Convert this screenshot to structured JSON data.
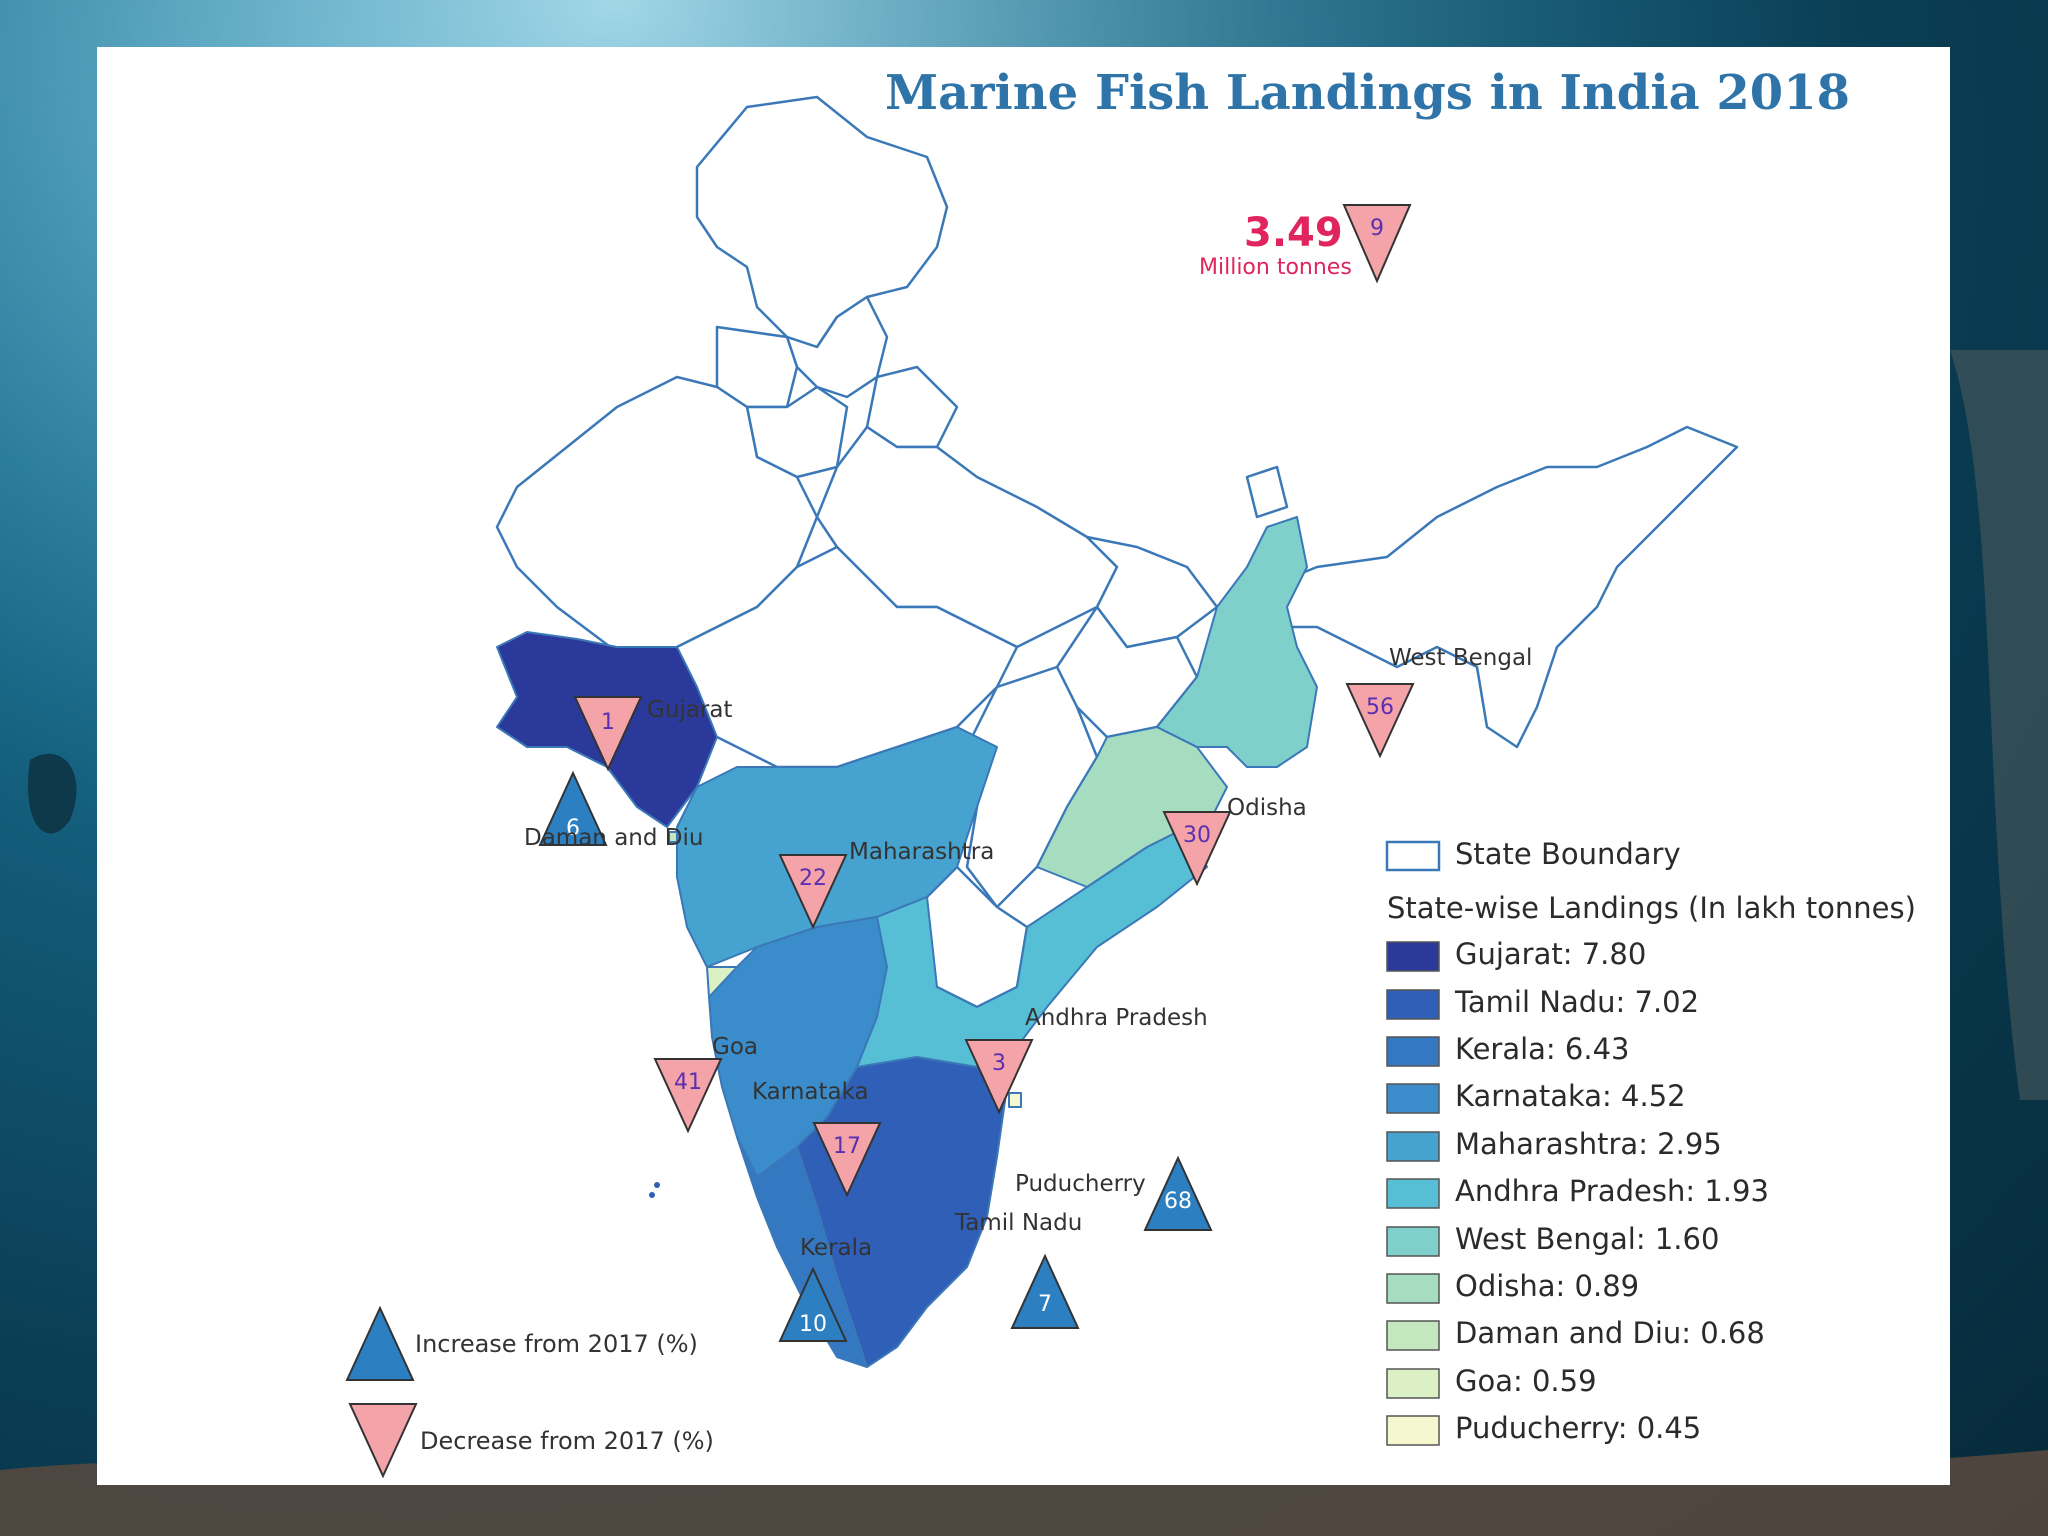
{
  "title": "Marine Fish Landings in India 2018",
  "national_total": {
    "value": "3.49",
    "unit": "Million tonnes",
    "change_pct": "9",
    "direction": "decrease"
  },
  "states": [
    {
      "name": "Gujarat",
      "landings_lakh_tonnes": 7.8,
      "change_pct": "1",
      "direction": "decrease",
      "color": "#2b3a9a"
    },
    {
      "name": "Tamil Nadu",
      "landings_lakh_tonnes": 7.02,
      "change_pct": "7",
      "direction": "increase",
      "color": "#2f5fb6"
    },
    {
      "name": "Kerala",
      "landings_lakh_tonnes": 6.43,
      "change_pct": "10",
      "direction": "increase",
      "color": "#3478c2"
    },
    {
      "name": "Karnataka",
      "landings_lakh_tonnes": 4.52,
      "change_pct": "17",
      "direction": "decrease",
      "color": "#3a8ccb"
    },
    {
      "name": "Maharashtra",
      "landings_lakh_tonnes": 2.95,
      "change_pct": "22",
      "direction": "decrease",
      "color": "#46a2ce"
    },
    {
      "name": "Andhra Pradesh",
      "landings_lakh_tonnes": 1.93,
      "change_pct": "3",
      "direction": "decrease",
      "color": "#56bfd6"
    },
    {
      "name": "West Bengal",
      "landings_lakh_tonnes": 1.6,
      "change_pct": "56",
      "direction": "decrease",
      "color": "#7fcfcb"
    },
    {
      "name": "Odisha",
      "landings_lakh_tonnes": 0.89,
      "change_pct": "30",
      "direction": "decrease",
      "color": "#a6dcbf"
    },
    {
      "name": "Daman and Diu",
      "landings_lakh_tonnes": 0.68,
      "change_pct": "6",
      "direction": "increase",
      "color": "#c4e7c0"
    },
    {
      "name": "Goa",
      "landings_lakh_tonnes": 0.59,
      "change_pct": "41",
      "direction": "decrease",
      "color": "#dcf0c6"
    },
    {
      "name": "Puducherry",
      "landings_lakh_tonnes": 0.45,
      "change_pct": "68",
      "direction": "increase",
      "color": "#f5f8cf"
    }
  ],
  "legend": {
    "boundary_label": "State Boundary",
    "heading": "State-wise Landings (In lakh tonnes)",
    "items": [
      "Gujarat: 7.80",
      "Tamil Nadu: 7.02",
      "Kerala: 6.43",
      "Karnataka: 4.52",
      "Maharashtra: 2.95",
      "Andhra Pradesh: 1.93",
      "West Bengal: 1.60",
      "Odisha: 0.89",
      "Daman and Diu: 0.68",
      "Goa: 0.59",
      "Puducherry: 0.45"
    ]
  },
  "key": {
    "increase": "Increase from 2017 (%)",
    "decrease": "Decrease from 2017 (%)"
  },
  "colors": {
    "title": "#2f74a8",
    "total": "#e0245e",
    "increase_marker": "#2c7fc0",
    "decrease_marker": "#f4a3a8",
    "boundary": "#3a78b8"
  }
}
